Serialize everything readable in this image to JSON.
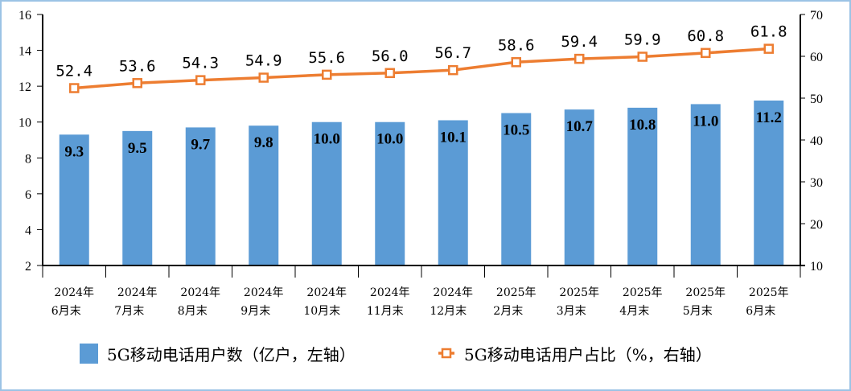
{
  "chart_data": {
    "type": "bar",
    "categories": [
      [
        "2024年",
        "6月末"
      ],
      [
        "2024年",
        "7月末"
      ],
      [
        "2024年",
        "8月末"
      ],
      [
        "2024年",
        "9月末"
      ],
      [
        "2024年",
        "10月末"
      ],
      [
        "2024年",
        "11月末"
      ],
      [
        "2024年",
        "12月末"
      ],
      [
        "2025年",
        "2月末"
      ],
      [
        "2025年",
        "3月末"
      ],
      [
        "2025年",
        "4月末"
      ],
      [
        "2025年",
        "5月末"
      ],
      [
        "2025年",
        "6月末"
      ]
    ],
    "series": [
      {
        "name": "5G移动电话用户数（亿户，左轴）",
        "type": "bar",
        "axis": "left",
        "color": "#5b9bd5",
        "values": [
          9.3,
          9.5,
          9.7,
          9.8,
          10.0,
          10.0,
          10.1,
          10.5,
          10.7,
          10.8,
          11.0,
          11.2
        ],
        "labels": [
          "9.3",
          "9.5",
          "9.7",
          "9.8",
          "10.0",
          "10.0",
          "10.1",
          "10.5",
          "10.7",
          "10.8",
          "11.0",
          "11.2"
        ]
      },
      {
        "name": "5G移动电话用户占比（%，右轴）",
        "type": "line",
        "axis": "right",
        "color": "#ed7d31",
        "values": [
          52.4,
          53.6,
          54.3,
          54.9,
          55.6,
          56.0,
          56.7,
          58.6,
          59.4,
          59.9,
          60.8,
          61.8
        ],
        "labels": [
          "52.4",
          "53.6",
          "54.3",
          "54.9",
          "55.6",
          "56.0",
          "56.7",
          "58.6",
          "59.4",
          "59.9",
          "60.8",
          "61.8"
        ]
      }
    ],
    "y_left": {
      "range": [
        2,
        16
      ],
      "ticks": [
        "2",
        "4",
        "6",
        "8",
        "10",
        "12",
        "14",
        "16"
      ]
    },
    "y_right": {
      "range": [
        10,
        70
      ],
      "ticks": [
        "10",
        "20",
        "30",
        "40",
        "50",
        "60",
        "70"
      ]
    },
    "grid": false,
    "legend_position": "bottom"
  }
}
